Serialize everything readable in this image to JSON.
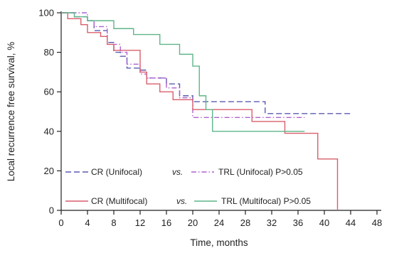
{
  "chart_data": {
    "type": "line",
    "xlabel": "Time, months",
    "ylabel": "Local recurrence free survival, %",
    "xlim": [
      0,
      48
    ],
    "ylim": [
      0,
      100
    ],
    "xticks": [
      0,
      4,
      8,
      12,
      16,
      20,
      24,
      28,
      32,
      36,
      40,
      44,
      48
    ],
    "yticks": [
      0,
      20,
      40,
      60,
      80,
      100
    ],
    "grid": false,
    "step": true,
    "series": [
      {
        "name": "CR (Unifocal)",
        "color": "#5a5ab0",
        "dash": "8,4",
        "points": [
          [
            0,
            100
          ],
          [
            2,
            100
          ],
          [
            2,
            98
          ],
          [
            4,
            98
          ],
          [
            4,
            96
          ],
          [
            5,
            96
          ],
          [
            5,
            91
          ],
          [
            7,
            91
          ],
          [
            7,
            85
          ],
          [
            8,
            85
          ],
          [
            8,
            80
          ],
          [
            9,
            80
          ],
          [
            9,
            78
          ],
          [
            10,
            78
          ],
          [
            10,
            72
          ],
          [
            12,
            72
          ],
          [
            12,
            71
          ],
          [
            13,
            71
          ],
          [
            13,
            67
          ],
          [
            16,
            67
          ],
          [
            16,
            64
          ],
          [
            18,
            64
          ],
          [
            18,
            58
          ],
          [
            20,
            58
          ],
          [
            20,
            55
          ],
          [
            31,
            55
          ],
          [
            31,
            49
          ],
          [
            44,
            49
          ]
        ]
      },
      {
        "name": "TRL (Unifocal)",
        "color": "#b060d0",
        "dash": "7,3,1.5,3",
        "points": [
          [
            0,
            100
          ],
          [
            4,
            100
          ],
          [
            4,
            96
          ],
          [
            5,
            96
          ],
          [
            5,
            93
          ],
          [
            7,
            93
          ],
          [
            7,
            84
          ],
          [
            9,
            84
          ],
          [
            9,
            80
          ],
          [
            10,
            80
          ],
          [
            10,
            74
          ],
          [
            12,
            74
          ],
          [
            12,
            69
          ],
          [
            13,
            69
          ],
          [
            13,
            67
          ],
          [
            16,
            67
          ],
          [
            16,
            62
          ],
          [
            18,
            62
          ],
          [
            18,
            57
          ],
          [
            20,
            57
          ],
          [
            20,
            47
          ],
          [
            37,
            47
          ]
        ]
      },
      {
        "name": "CR (Multifocal)",
        "color": "#d95f6b",
        "dash": "",
        "points": [
          [
            0,
            100
          ],
          [
            1,
            100
          ],
          [
            1,
            97
          ],
          [
            3,
            97
          ],
          [
            3,
            94
          ],
          [
            4,
            94
          ],
          [
            4,
            90
          ],
          [
            6,
            90
          ],
          [
            6,
            88
          ],
          [
            7,
            88
          ],
          [
            7,
            84
          ],
          [
            8,
            84
          ],
          [
            8,
            81
          ],
          [
            12,
            81
          ],
          [
            12,
            70
          ],
          [
            13,
            70
          ],
          [
            13,
            64
          ],
          [
            15,
            64
          ],
          [
            15,
            60
          ],
          [
            17,
            60
          ],
          [
            17,
            56
          ],
          [
            20,
            56
          ],
          [
            20,
            51
          ],
          [
            29,
            51
          ],
          [
            29,
            45
          ],
          [
            34,
            45
          ],
          [
            34,
            39
          ],
          [
            39,
            39
          ],
          [
            39,
            26
          ],
          [
            42,
            26
          ],
          [
            42,
            0
          ]
        ]
      },
      {
        "name": "TRL (Multifocal)",
        "color": "#5fb58a",
        "dash": "",
        "points": [
          [
            0,
            100
          ],
          [
            2,
            100
          ],
          [
            2,
            98
          ],
          [
            4,
            98
          ],
          [
            4,
            96
          ],
          [
            8,
            96
          ],
          [
            8,
            92
          ],
          [
            11,
            92
          ],
          [
            11,
            89
          ],
          [
            15,
            89
          ],
          [
            15,
            84
          ],
          [
            18,
            84
          ],
          [
            18,
            79
          ],
          [
            20,
            79
          ],
          [
            20,
            73
          ],
          [
            21,
            73
          ],
          [
            21,
            58
          ],
          [
            22,
            58
          ],
          [
            22,
            51
          ],
          [
            23,
            51
          ],
          [
            23,
            40
          ],
          [
            37,
            40
          ]
        ]
      }
    ],
    "legend": {
      "placement": "bottom-left",
      "rows": [
        {
          "left": "CR (Unifocal)",
          "vs": "vs.",
          "right": "TRL (Unifocal) P>0.05"
        },
        {
          "left": "CR (Multifocal)",
          "vs": "vs.",
          "right": "TRL (Multifocal) P>0.05"
        }
      ]
    }
  }
}
